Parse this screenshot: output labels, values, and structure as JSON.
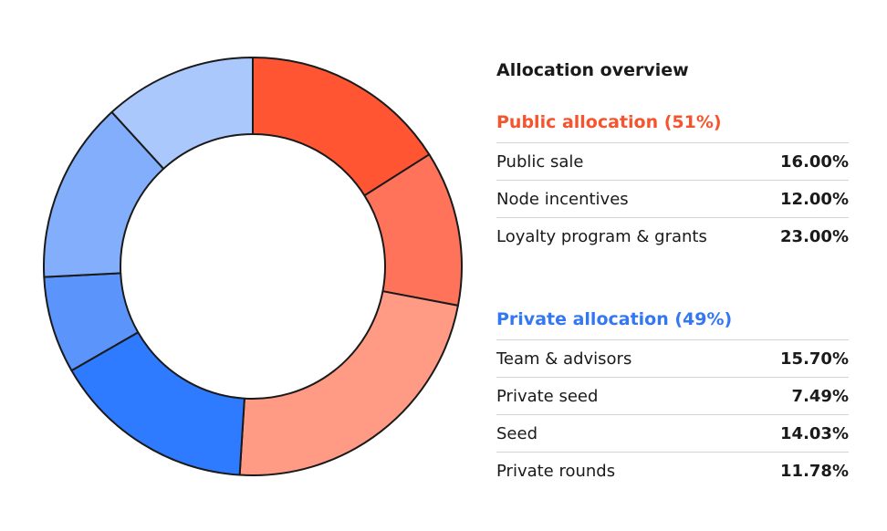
{
  "chart_data": {
    "type": "pie",
    "donut": true,
    "title": "Allocation overview",
    "groups": [
      {
        "name": "Public allocation (51%)",
        "color": "#f5542e",
        "items": [
          {
            "label": "Public sale",
            "value": 16.0,
            "display": "16.00%",
            "color": "#ff5533"
          },
          {
            "label": "Node incentives",
            "value": 12.0,
            "display": "12.00%",
            "color": "#ff735a"
          },
          {
            "label": "Loyalty program & grants",
            "value": 23.0,
            "display": "23.00%",
            "color": "#ff9a85"
          }
        ]
      },
      {
        "name": "Private allocation (49%)",
        "color": "#3377f2",
        "items": [
          {
            "label": "Team & advisors",
            "value": 15.7,
            "display": "15.70%",
            "color": "#2f7bff"
          },
          {
            "label": "Private seed",
            "value": 7.49,
            "display": "7.49%",
            "color": "#5b95fb"
          },
          {
            "label": "Seed",
            "value": 14.03,
            "display": "14.03%",
            "color": "#82aefc"
          },
          {
            "label": "Private rounds",
            "value": 11.78,
            "display": "11.78%",
            "color": "#abc8fd"
          }
        ]
      }
    ]
  }
}
